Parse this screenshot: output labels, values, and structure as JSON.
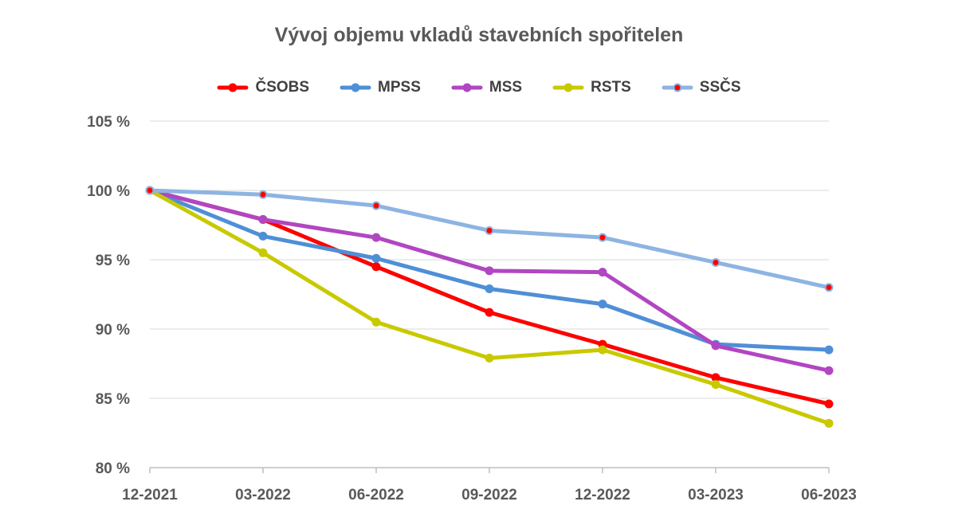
{
  "chart_data": {
    "type": "line",
    "title": "Vývoj objemu vkladů stavebních spořitelen",
    "xlabel": "",
    "ylabel": "",
    "categories": [
      "12-2021",
      "03-2022",
      "06-2022",
      "09-2022",
      "12-2022",
      "03-2023",
      "06-2023"
    ],
    "ylim": [
      80,
      105
    ],
    "yticks": [
      80,
      85,
      90,
      95,
      100,
      105
    ],
    "ytick_suffix": " %",
    "grid": "horizontal",
    "legend": "top",
    "series": [
      {
        "name": "ČSOBS",
        "color": "#ff0000",
        "marker_fill": "#ff0000",
        "values": [
          100.0,
          97.9,
          94.5,
          91.2,
          88.9,
          86.5,
          84.6
        ]
      },
      {
        "name": "MPSS",
        "color": "#4f8fd6",
        "marker_fill": "#4f8fd6",
        "values": [
          100.0,
          96.7,
          95.1,
          92.9,
          91.8,
          88.9,
          88.5
        ]
      },
      {
        "name": "MSS",
        "color": "#b146c2",
        "marker_fill": "#b146c2",
        "values": [
          100.0,
          97.9,
          96.6,
          94.2,
          94.1,
          88.8,
          87.0
        ]
      },
      {
        "name": "RSTS",
        "color": "#c9c900",
        "marker_fill": "#c9c900",
        "values": [
          100.0,
          95.5,
          90.5,
          87.9,
          88.5,
          86.0,
          83.2
        ]
      },
      {
        "name": "SSČS",
        "color": "#8db4e2",
        "marker_fill": "#ff0000",
        "values": [
          100.0,
          99.7,
          98.9,
          97.1,
          96.6,
          94.8,
          93.0
        ]
      }
    ]
  }
}
